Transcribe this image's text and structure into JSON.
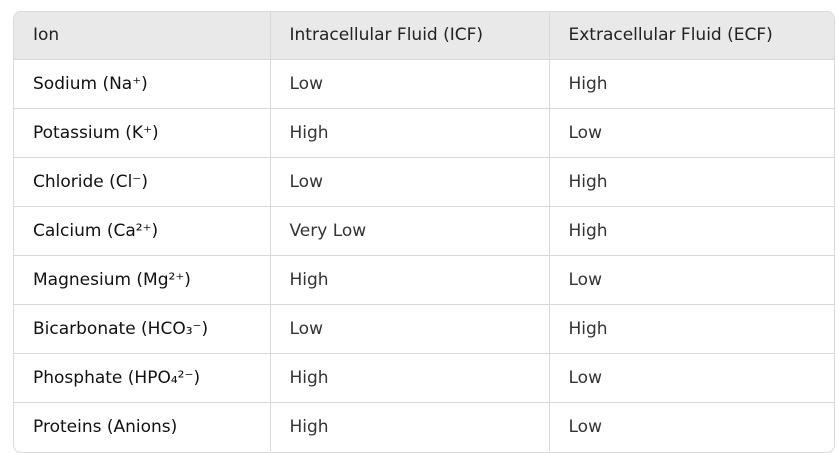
{
  "table": {
    "headers": [
      "Ion",
      "Intracellular Fluid (ICF)",
      "Extracellular Fluid (ECF)"
    ],
    "rows": [
      {
        "ion": "Sodium (Na⁺)",
        "icf": "Low",
        "ecf": "High"
      },
      {
        "ion": "Potassium (K⁺)",
        "icf": "High",
        "ecf": "Low"
      },
      {
        "ion": "Chloride (Cl⁻)",
        "icf": "Low",
        "ecf": "High"
      },
      {
        "ion": "Calcium (Ca²⁺)",
        "icf": "Very Low",
        "ecf": "High"
      },
      {
        "ion": "Magnesium (Mg²⁺)",
        "icf": "High",
        "ecf": "Low"
      },
      {
        "ion": "Bicarbonate (HCO₃⁻)",
        "icf": "Low",
        "ecf": "High"
      },
      {
        "ion": "Phosphate (HPO₄²⁻)",
        "icf": "High",
        "ecf": "Low"
      },
      {
        "ion": "Proteins (Anions)",
        "icf": "High",
        "ecf": "Low"
      }
    ]
  }
}
